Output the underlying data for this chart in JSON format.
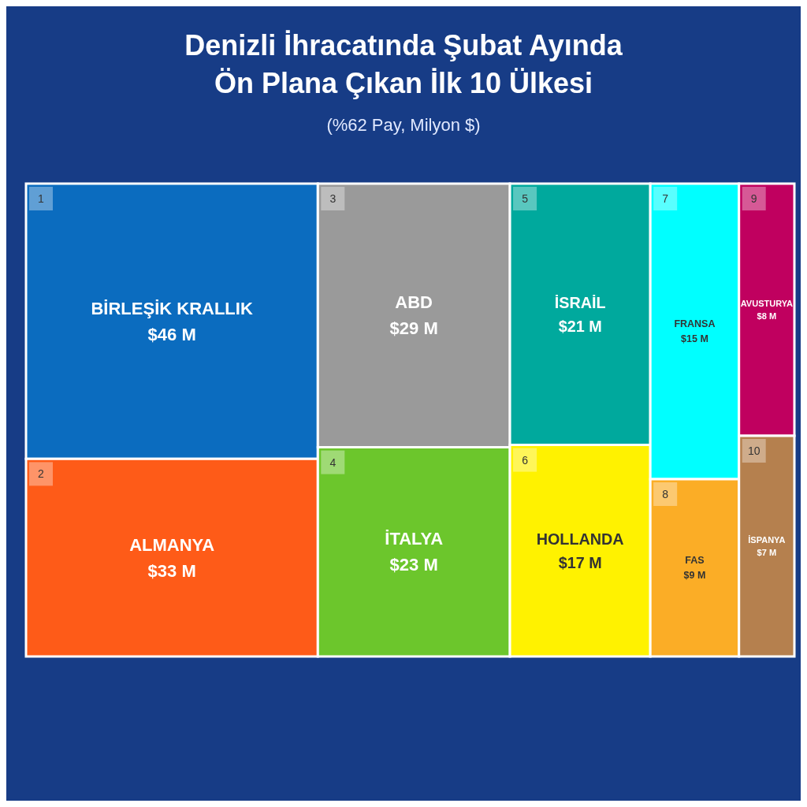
{
  "chart_data": {
    "type": "other",
    "title": "Denizli İhracatında Şubat Ayında\nÖn Plana Çıkan İlk 10 Ülkesi",
    "subtitle": "(%62 Pay, Milyon $)",
    "categories": [
      "BİRLEŞİK KRALLIK",
      "ALMANYA",
      "ABD",
      "İTALYA",
      "İSRAİL",
      "HOLLANDA",
      "FRANSA",
      "FAS",
      "AVUSTURYA",
      "İSPANYA"
    ],
    "values": [
      46,
      33,
      29,
      23,
      21,
      17,
      15,
      9,
      8,
      7
    ],
    "value_labels": [
      "$46 M",
      "$33 M",
      "$29 M",
      "$23 M",
      "$21 M",
      "$17 M",
      "$15 M",
      "$9 M",
      "$8 M",
      "$7 M"
    ],
    "colors": [
      "#0b6cbf",
      "#fe5b18",
      "#9a9a9a",
      "#6cc62c",
      "#00a99d",
      "#fff200",
      "#00ffff",
      "#fbad26",
      "#c0005f",
      "#b5804e"
    ],
    "annotations": [
      "1",
      "2",
      "3",
      "4",
      "5",
      "6",
      "7",
      "8",
      "9",
      "10"
    ]
  }
}
